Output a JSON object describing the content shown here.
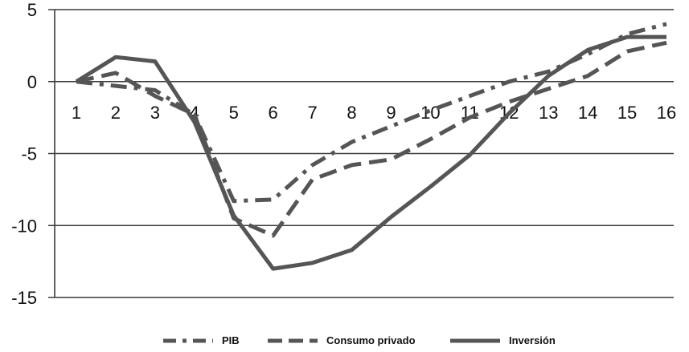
{
  "chart_data": {
    "type": "line",
    "title": "",
    "xlabel": "",
    "ylabel": "",
    "x": [
      1,
      2,
      3,
      4,
      5,
      6,
      7,
      8,
      9,
      10,
      11,
      12,
      13,
      14,
      15,
      16
    ],
    "xtick_labels": [
      "1",
      "2",
      "3",
      "4",
      "5",
      "6",
      "7",
      "8",
      "9",
      "10",
      "11",
      "12",
      "13",
      "14",
      "15",
      "16"
    ],
    "ylim": [
      -15,
      5
    ],
    "yticks": [
      5,
      0,
      -5,
      -10,
      -15
    ],
    "ytick_labels": [
      "5",
      "0",
      "-5",
      "-10",
      "-15"
    ],
    "grid": "horizontal",
    "legend_position": "bottom",
    "series": [
      {
        "name": "PIB",
        "style": "dash-dot",
        "color": "#555555",
        "values": [
          0,
          -0.3,
          -0.6,
          -2.3,
          -8.3,
          -8.2,
          -5.8,
          -4.2,
          -3.1,
          -2.0,
          -1.0,
          0.0,
          0.7,
          1.9,
          3.3,
          4.0
        ]
      },
      {
        "name": "Consumo privado",
        "style": "dash",
        "color": "#555555",
        "values": [
          0,
          0.6,
          -1.0,
          -2.3,
          -9.5,
          -10.7,
          -6.8,
          -5.8,
          -5.4,
          -4.0,
          -2.5,
          -1.4,
          -0.5,
          0.4,
          2.1,
          2.7
        ]
      },
      {
        "name": "Inversión",
        "style": "solid",
        "color": "#555555",
        "values": [
          0,
          1.7,
          1.4,
          -2.8,
          -9.3,
          -13.0,
          -12.6,
          -11.7,
          -9.4,
          -7.3,
          -5.1,
          -2.2,
          0.4,
          2.2,
          3.1,
          3.1
        ]
      }
    ]
  }
}
